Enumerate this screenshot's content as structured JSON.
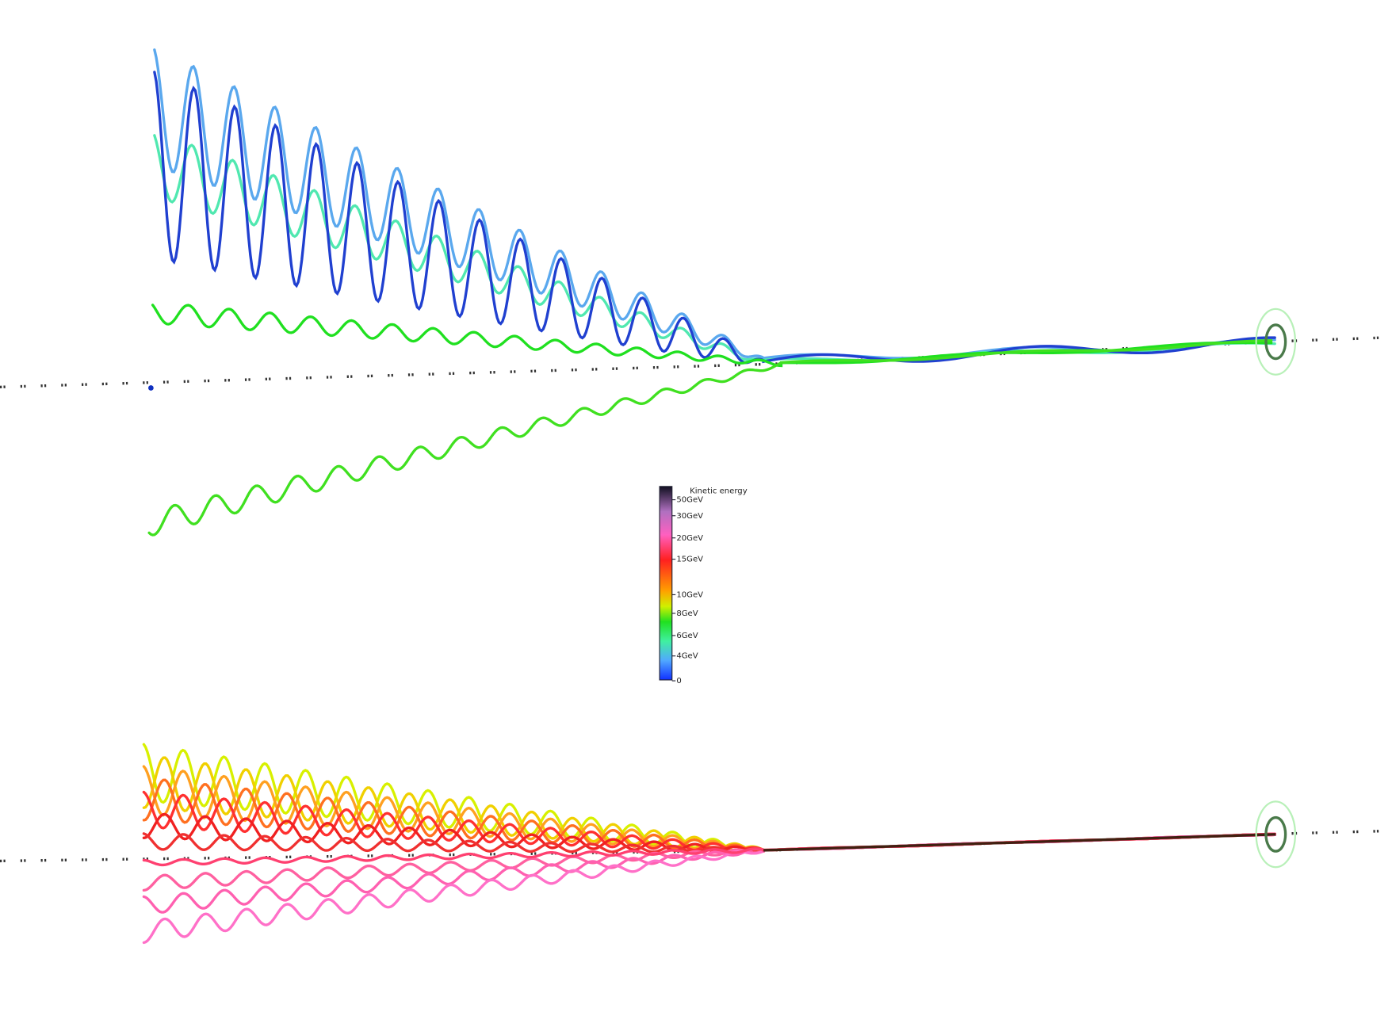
{
  "legend": {
    "title": "Kinetic energy",
    "labels": [
      "50GeV",
      "30GeV",
      "20GeV",
      "15GeV",
      "10GeV",
      "8GeV",
      "6GeV",
      "4GeV",
      "0"
    ]
  }
}
